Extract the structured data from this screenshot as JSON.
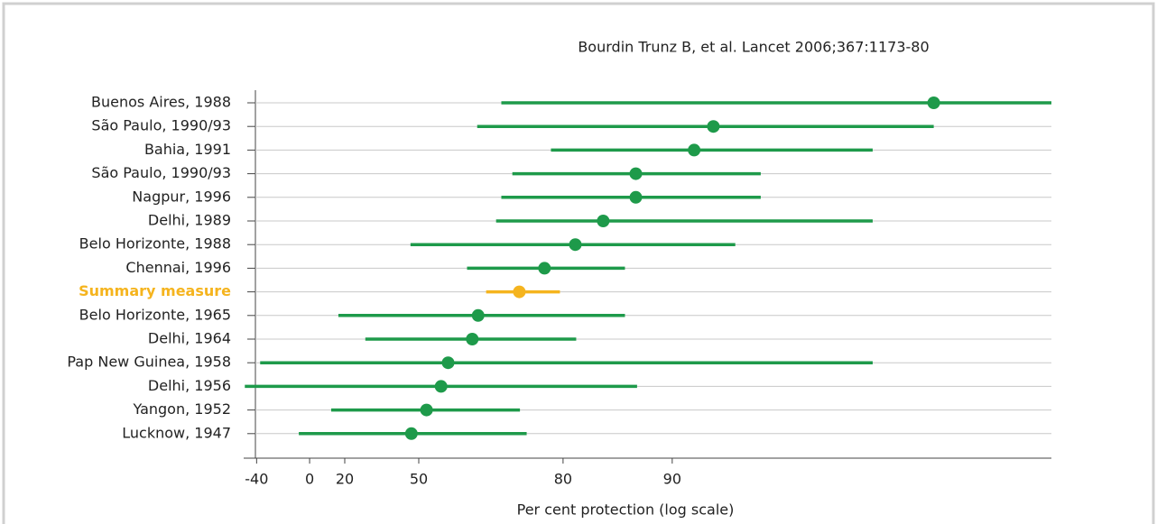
{
  "chart_data": {
    "type": "forest",
    "source": "Bourdin Trunz B, et al. Lancet 2006;367:1173-80",
    "xlabel": "Per cent protection (log scale)",
    "xscale": "log-risk",
    "categories": [
      "Buenos Aires, 1988",
      "São Paulo, 1990/93",
      "Bahia, 1991",
      "São Paulo, 1990/93",
      "Nagpur, 1996",
      "Delhi, 1989",
      "Belo Horizonte, 1988",
      "Chennai, 1996",
      "Summary measure",
      "Belo Horizonte, 1965",
      "Delhi, 1964",
      "Pap New Guinea, 1958",
      "Delhi, 1956",
      "Yangon, 1952",
      "Lucknow, 1947"
    ],
    "values": [
      98.1,
      92.3,
      91.3,
      87.4,
      87.4,
      84.5,
      81.5,
      77.5,
      73.6,
      65.7,
      64.4,
      58.5,
      56.6,
      52.4,
      47.6
    ],
    "lower": [
      70.4,
      65.5,
      78.4,
      72.4,
      70.4,
      69.4,
      47.3,
      63.2,
      67.4,
      16.7,
      29.8,
      -36.9,
      -50.9,
      12.8,
      -7.1
    ],
    "upper": [
      99.1,
      98.1,
      97.2,
      94.3,
      94.3,
      97.2,
      93.3,
      86.5,
      79.6,
      86.5,
      81.6,
      97.2,
      87.5,
      73.7,
      74.8
    ],
    "colors": [
      "#1e9a4a",
      "#1e9a4a",
      "#1e9a4a",
      "#1e9a4a",
      "#1e9a4a",
      "#1e9a4a",
      "#1e9a4a",
      "#1e9a4a",
      "#f5b41e",
      "#1e9a4a",
      "#1e9a4a",
      "#1e9a4a",
      "#1e9a4a",
      "#1e9a4a",
      "#1e9a4a"
    ],
    "label_colors": [
      "#222",
      "#222",
      "#222",
      "#222",
      "#222",
      "#222",
      "#222",
      "#222",
      "#f5b41e",
      "#222",
      "#222",
      "#222",
      "#222",
      "#222",
      "#222"
    ],
    "xlim": [
      -52,
      99.1
    ],
    "xticks": [
      -40,
      0,
      20,
      50,
      80,
      90
    ],
    "grid": true
  }
}
